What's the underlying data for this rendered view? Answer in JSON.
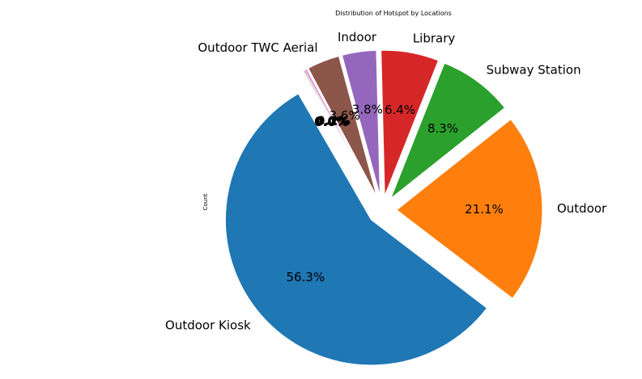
{
  "chart_data": {
    "type": "pie",
    "title": "Distribution of Hotspot by Locations",
    "ylabel": "Count",
    "startangle_deg": 120,
    "direction": "counterclockwise",
    "explode": 0.1,
    "slices": [
      {
        "label": "Outdoor Kiosk",
        "value": 56.3,
        "pct_label": "56.3%",
        "color": "#1f77b4"
      },
      {
        "label": "Outdoor",
        "value": 21.1,
        "pct_label": "21.1%",
        "color": "#ff7f0e"
      },
      {
        "label": "Subway Station",
        "value": 8.3,
        "pct_label": "8.3%",
        "color": "#2ca02c"
      },
      {
        "label": "Library",
        "value": 6.4,
        "pct_label": "6.4%",
        "color": "#d62728"
      },
      {
        "label": "Indoor",
        "value": 3.8,
        "pct_label": "3.8%",
        "color": "#9467bd"
      },
      {
        "label": "Outdoor TWC Aerial",
        "value": 3.6,
        "pct_label": "3.6%",
        "color": "#8c564b"
      },
      {
        "label": "",
        "value": 0.25,
        "pct_label": "0.2%",
        "color": "#e377c2"
      },
      {
        "label": "",
        "value": 0.15,
        "pct_label": "0.1%",
        "color": "#7f7f7f"
      },
      {
        "label": "",
        "value": 0.05,
        "pct_label": "0.0%",
        "color": "#bcbd22"
      },
      {
        "label": "",
        "value": 0.04,
        "pct_label": "0.0%",
        "color": "#17becf"
      },
      {
        "label": "",
        "value": 0.03,
        "pct_label": "0.0%",
        "color": "#1f77b4"
      },
      {
        "label": "",
        "value": 0.02,
        "pct_label": "0.0%",
        "color": "#ff7f0e"
      }
    ]
  }
}
